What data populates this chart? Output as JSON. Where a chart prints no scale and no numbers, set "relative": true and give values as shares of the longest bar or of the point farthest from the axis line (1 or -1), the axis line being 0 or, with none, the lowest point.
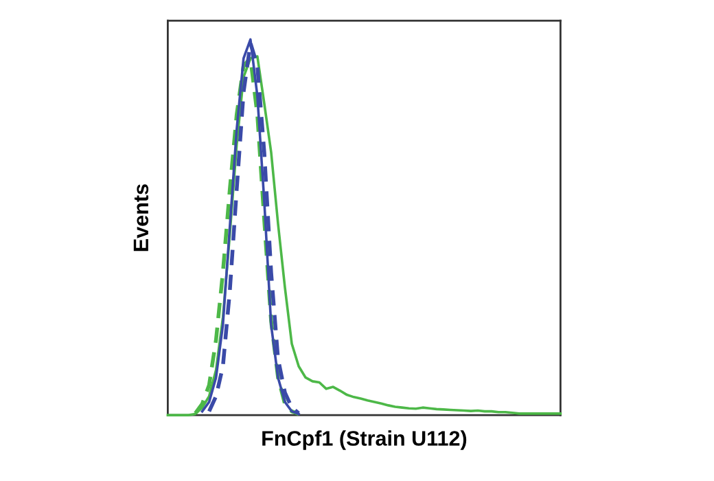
{
  "chart_data": {
    "type": "line",
    "relative": true,
    "xlabel": "FnCpf1 (Strain U112)",
    "ylabel": "Events",
    "tick_labels": false,
    "grid": false,
    "legend": false,
    "marker": "none",
    "categories": [
      null,
      null,
      null,
      null,
      null,
      null,
      null,
      null,
      null,
      null,
      null,
      null,
      null,
      null,
      null,
      null,
      null,
      null,
      null,
      null,
      null,
      null,
      null,
      null,
      null,
      null,
      null,
      null,
      null,
      null,
      null,
      null,
      null,
      null,
      null,
      null,
      null,
      null,
      null,
      null,
      null,
      null,
      null,
      null,
      null,
      null,
      null,
      null,
      null,
      null,
      null,
      null,
      null,
      null,
      null,
      null,
      null,
      null
    ],
    "series": [
      {
        "color": "#4db848",
        "line_style": "solid",
        "values": [
          0,
          0,
          0,
          0,
          0.003,
          0.02,
          0.05,
          0.12,
          0.26,
          0.48,
          0.72,
          0.9,
          0.95,
          0.955,
          0.83,
          0.7,
          0.51,
          0.34,
          0.19,
          0.13,
          0.1,
          0.09,
          0.087,
          0.07,
          0.075,
          0.065,
          0.054,
          0.048,
          0.044,
          0.039,
          0.035,
          0.031,
          0.026,
          0.022,
          0.02,
          0.018,
          0.017,
          0.02,
          0.018,
          0.016,
          0.015,
          0.014,
          0.013,
          0.012,
          0.011,
          0.012,
          0.01,
          0.01,
          0.008,
          0.008,
          0.006,
          0.004,
          0.004,
          0.004,
          0.004,
          0.004,
          0.004,
          0.004
        ]
      },
      {
        "color": "#4db848",
        "line_style": "dashed",
        "values": [
          null,
          null,
          null,
          null,
          0.005,
          0.03,
          0.08,
          0.2,
          0.38,
          0.6,
          0.8,
          0.93,
          0.95,
          0.8,
          0.52,
          0.25,
          0.1,
          0.03,
          0.01,
          0.003,
          null,
          null,
          null,
          null,
          null,
          null,
          null,
          null,
          null,
          null,
          null,
          null,
          null,
          null,
          null,
          null,
          null,
          null,
          null,
          null,
          null,
          null,
          null,
          null,
          null,
          null,
          null,
          null,
          null,
          null,
          null,
          null,
          null,
          null,
          null,
          null,
          null,
          null
        ]
      },
      {
        "color": "#3a4aa8",
        "line_style": "solid",
        "values": [
          null,
          null,
          null,
          null,
          null,
          0.01,
          0.035,
          0.1,
          0.24,
          0.5,
          0.76,
          0.95,
          1,
          0.85,
          0.57,
          0.24,
          0.1,
          0.035,
          0.01,
          0.003,
          null,
          null,
          null,
          null,
          null,
          null,
          null,
          null,
          null,
          null,
          null,
          null,
          null,
          null,
          null,
          null,
          null,
          null,
          null,
          null,
          null,
          null,
          null,
          null,
          null,
          null,
          null,
          null,
          null,
          null,
          null,
          null,
          null,
          null,
          null,
          null,
          null,
          null
        ]
      },
      {
        "color": "#3a4aa8",
        "line_style": "dashed",
        "values": [
          null,
          null,
          null,
          null,
          null,
          null,
          0.01,
          0.05,
          0.13,
          0.33,
          0.6,
          0.86,
          0.99,
          0.93,
          0.7,
          0.38,
          0.15,
          0.06,
          0.02,
          0.005,
          null,
          null,
          null,
          null,
          null,
          null,
          null,
          null,
          null,
          null,
          null,
          null,
          null,
          null,
          null,
          null,
          null,
          null,
          null,
          null,
          null,
          null,
          null,
          null,
          null,
          null,
          null,
          null,
          null,
          null,
          null,
          null,
          null,
          null,
          null,
          null,
          null,
          null
        ]
      }
    ]
  }
}
